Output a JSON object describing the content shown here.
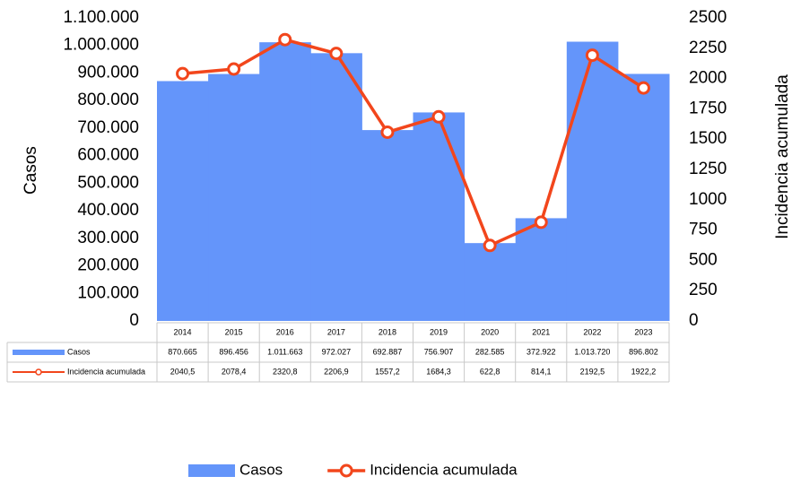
{
  "chart_data": {
    "type": "bar",
    "categories": [
      "2014",
      "2015",
      "2016",
      "2017",
      "2018",
      "2019",
      "2020",
      "2021",
      "2022",
      "2023"
    ],
    "series": [
      {
        "name": "Casos",
        "type": "bar",
        "color": "#6495fa",
        "values": [
          870665,
          896456,
          1011663,
          972027,
          692887,
          756907,
          282585,
          372922,
          1013720,
          896802
        ],
        "value_labels": [
          "870.665",
          "896.456",
          "1.011.663",
          "972.027",
          "692.887",
          "756.907",
          "282.585",
          "372.922",
          "1.013.720",
          "896.802"
        ]
      },
      {
        "name": "Incidencia acumulada",
        "type": "line",
        "axis": "y2",
        "color": "#f2461c",
        "values": [
          2040.5,
          2078.4,
          2320.8,
          2206.9,
          1557.2,
          1684.3,
          622.8,
          814.1,
          2192.5,
          1922.2
        ],
        "value_labels": [
          "2040,5",
          "2078,4",
          "2320,8",
          "2206,9",
          "1557,2",
          "1684,3",
          "622,8",
          "814,1",
          "2192,5",
          "1922,2"
        ]
      }
    ],
    "ylabel": "Casos",
    "y2label": "Incidencia acumulada",
    "ylim": [
      0,
      1100000
    ],
    "yticks": [
      0,
      {
        "value": 100000,
        "label": "100.000"
      },
      {
        "value": 200000,
        "label": "200.000"
      },
      {
        "value": 300000,
        "label": "300.000"
      },
      {
        "value": 400000,
        "label": "400.000"
      },
      {
        "value": 500000,
        "label": "500.000"
      },
      {
        "value": 600000,
        "label": "600.000"
      },
      {
        "value": 700000,
        "label": "700.000"
      },
      {
        "value": 800000,
        "label": "800.000"
      },
      {
        "value": 900000,
        "label": "900.000"
      },
      {
        "value": 1000000,
        "label": "1.000.000"
      },
      {
        "value": 1100000,
        "label": "1.100.000"
      }
    ],
    "y2lim": [
      0,
      2500
    ],
    "y2ticks": [
      0,
      250,
      500,
      750,
      1000,
      1250,
      1500,
      1750,
      2000,
      2250,
      2500
    ],
    "legend": "bottom",
    "data_table": true
  }
}
